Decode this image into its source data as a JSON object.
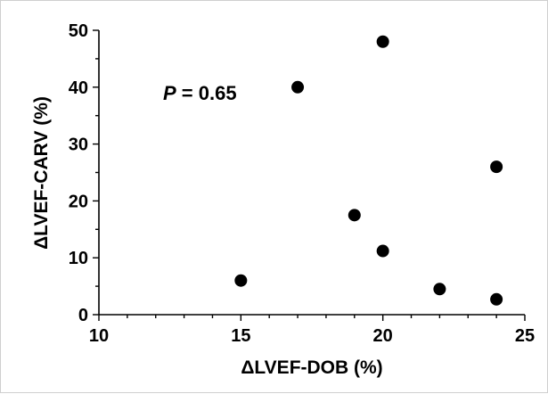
{
  "chart_data": {
    "type": "scatter",
    "title": "",
    "xlabel": "ΔLVEF-DOB (%)",
    "ylabel": "ΔLVEF-CARV (%)",
    "xlim": [
      10,
      25
    ],
    "ylim": [
      0,
      50
    ],
    "xticks": [
      10,
      15,
      20,
      25
    ],
    "yticks": [
      0,
      10,
      20,
      30,
      40,
      50
    ],
    "grid": false,
    "legend": "none",
    "annotation": {
      "p_symbol": "P",
      "p_value_text": " = 0.65"
    },
    "points": [
      {
        "x": 15,
        "y": 6
      },
      {
        "x": 17,
        "y": 40
      },
      {
        "x": 19,
        "y": 17.5
      },
      {
        "x": 20,
        "y": 48
      },
      {
        "x": 20,
        "y": 11.2
      },
      {
        "x": 22,
        "y": 4.5
      },
      {
        "x": 24,
        "y": 26
      },
      {
        "x": 24,
        "y": 2.7
      }
    ],
    "marker_color": "#000000"
  }
}
